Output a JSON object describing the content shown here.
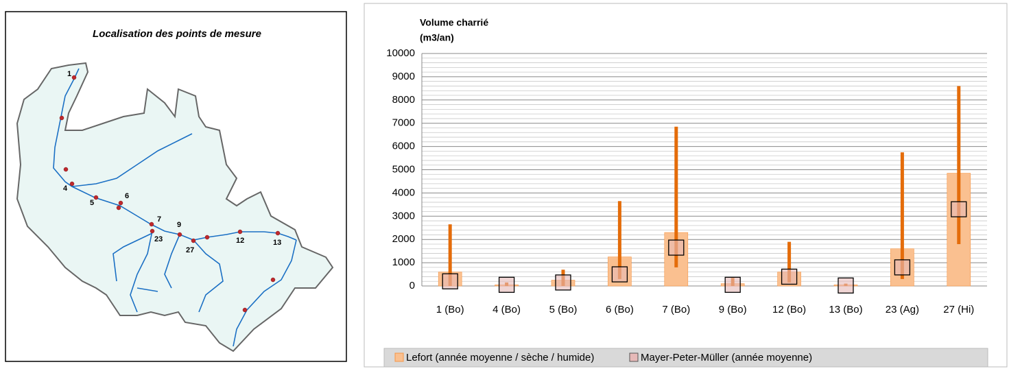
{
  "map": {
    "title": "Localisation des points de mesure",
    "points": [
      "1",
      "4",
      "5",
      "6",
      "7",
      "9",
      "23",
      "27",
      "12",
      "13"
    ]
  },
  "chart_data": {
    "type": "bar",
    "ylabel": [
      "Volume charrié",
      "(m3/an)"
    ],
    "categories": [
      "1 (Bo)",
      "4 (Bo)",
      "5 (Bo)",
      "6 (Bo)",
      "7 (Bo)",
      "9 (Bo)",
      "12 (Bo)",
      "13 (Bo)",
      "23 (Ag)",
      "27 (Hi)"
    ],
    "series": [
      {
        "name": "Lefort (année moyenne / sèche / humide)",
        "color": "#fac090",
        "edge": "#f79646",
        "error_color": "#e46c0a",
        "values": [
          600,
          50,
          250,
          1250,
          2300,
          100,
          600,
          50,
          1600,
          4850
        ],
        "low": [
          0,
          0,
          0,
          300,
          800,
          0,
          150,
          0,
          300,
          1800
        ],
        "high": [
          2650,
          150,
          700,
          3650,
          6850,
          350,
          1900,
          100,
          5750,
          8600
        ]
      },
      {
        "name": "Mayer-Peter-Müller (année moyenne)",
        "color": "#e6b9b8",
        "values": [
          200,
          50,
          150,
          500,
          1650,
          50,
          400,
          20,
          800,
          3300
        ]
      }
    ],
    "ylim": [
      0,
      10000
    ],
    "yticks": [
      0,
      1000,
      2000,
      3000,
      4000,
      5000,
      6000,
      7000,
      8000,
      9000,
      10000
    ],
    "grid": true,
    "minor_grid_divisions": 5,
    "legend": "bottom"
  }
}
